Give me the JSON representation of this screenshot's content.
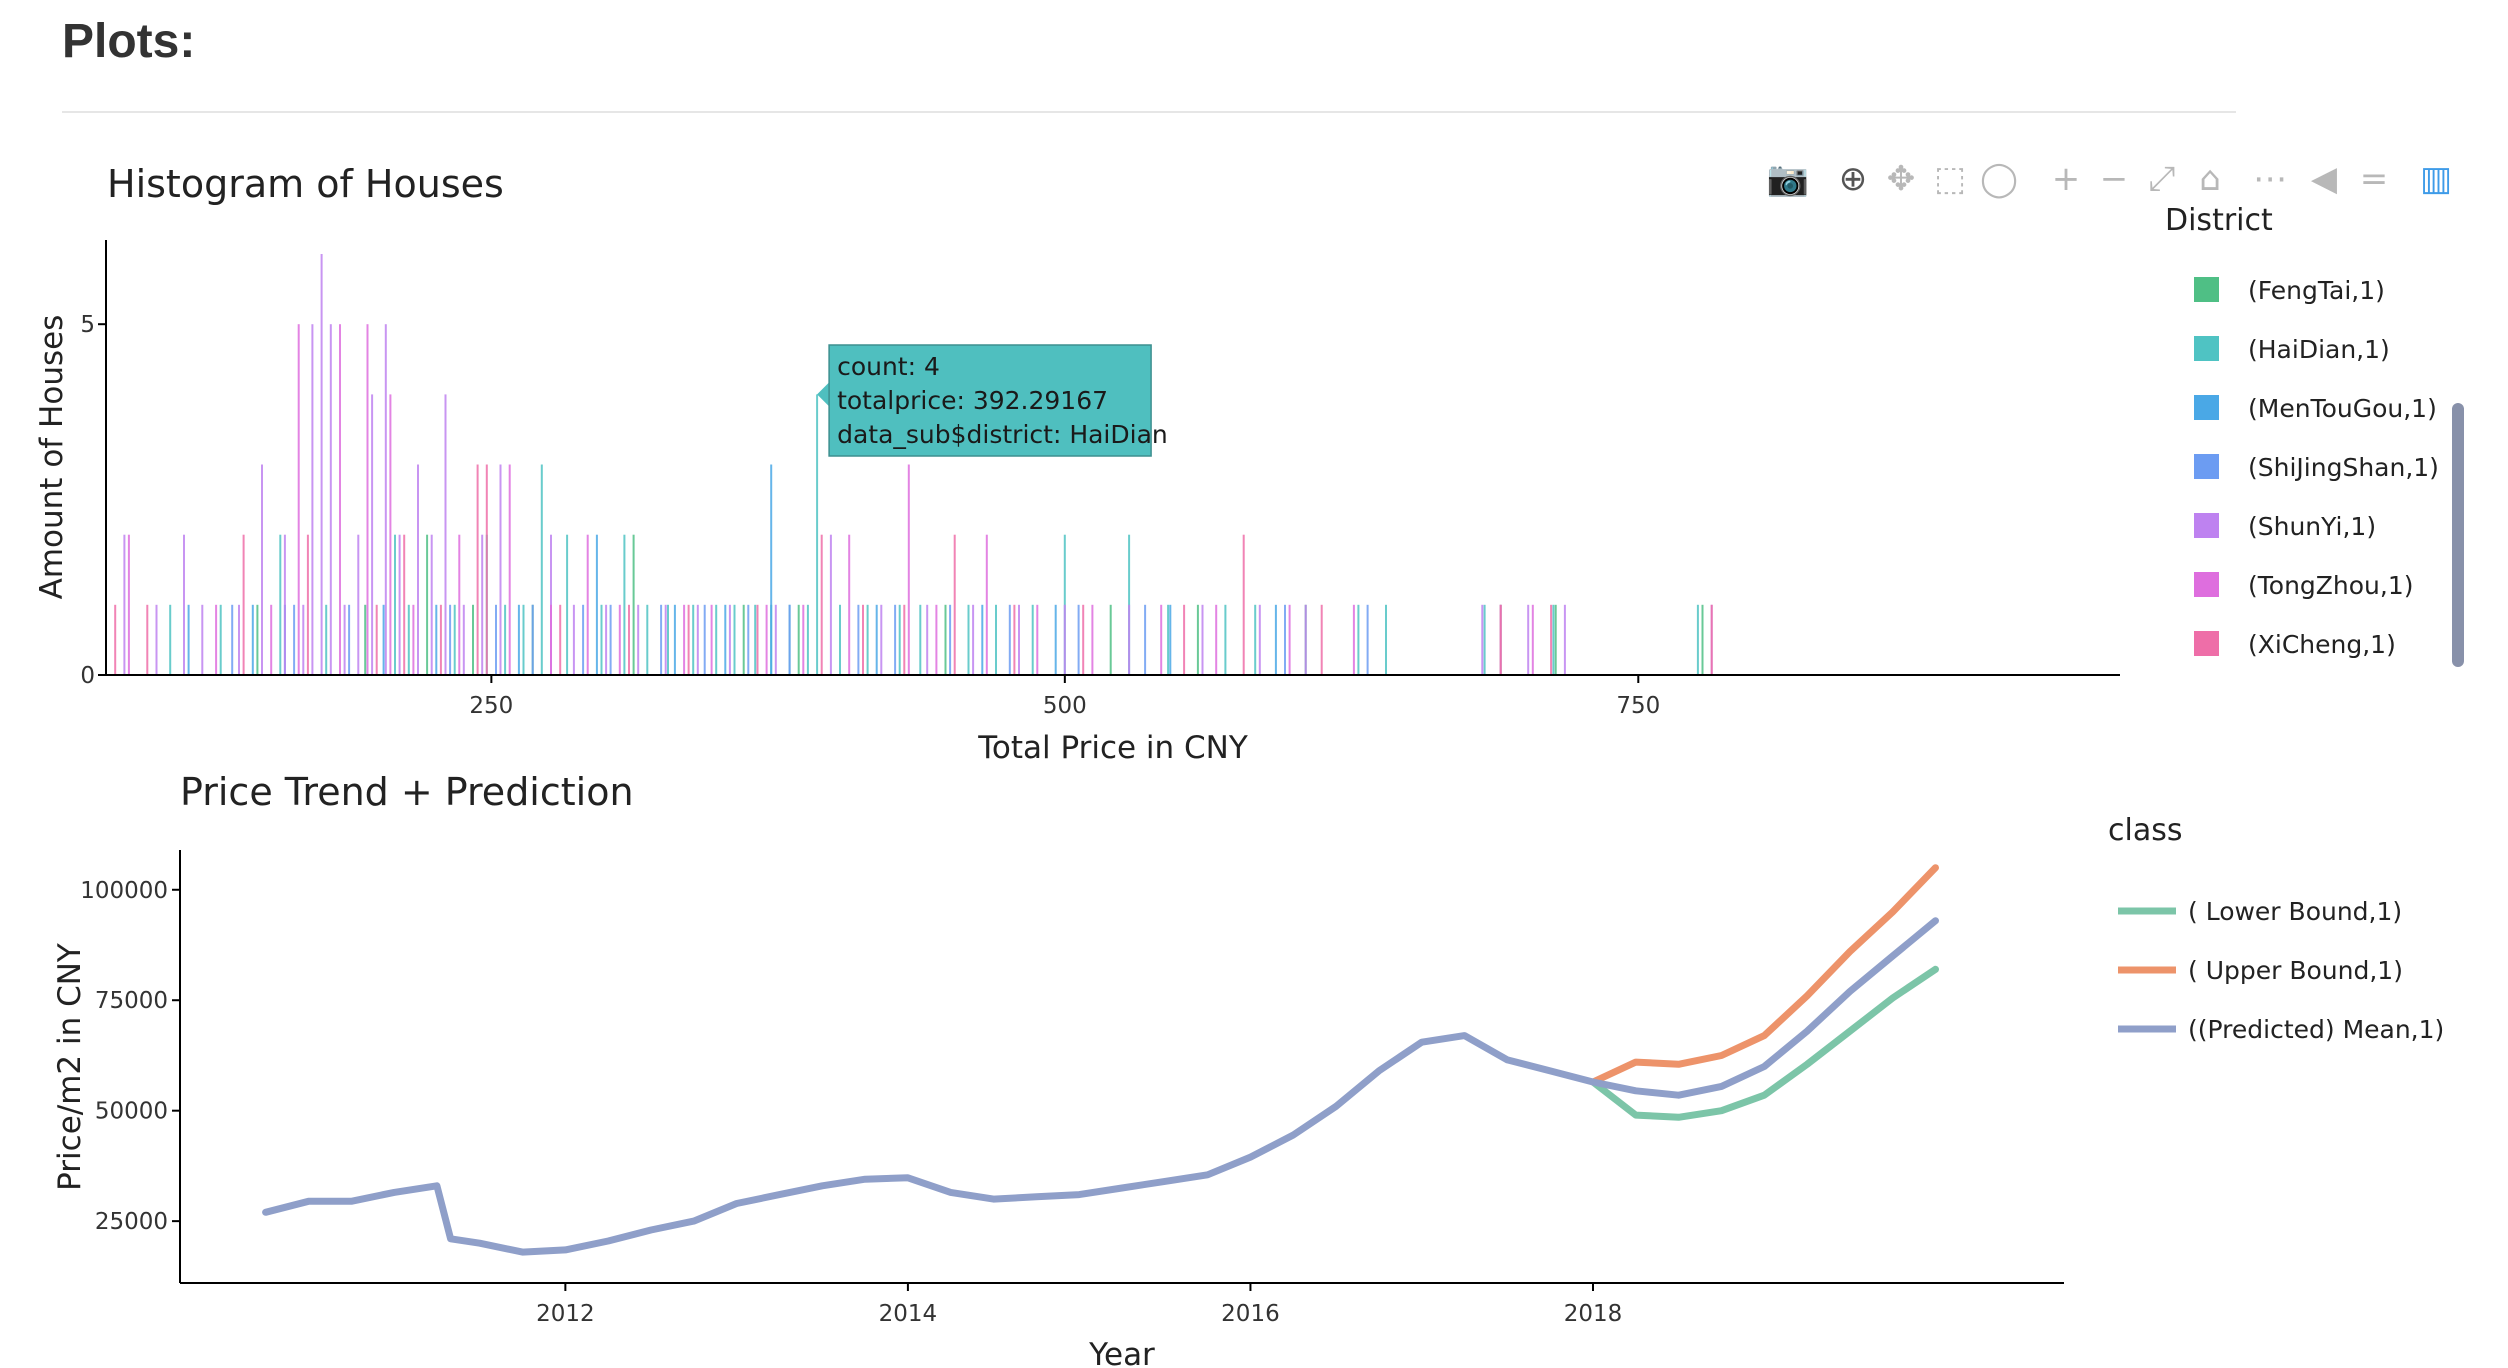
{
  "page": {
    "heading": "Plots:"
  },
  "modebar": {
    "buttons": [
      {
        "name": "camera-icon",
        "glyph": "📷"
      },
      {
        "name": "zoom-icon",
        "glyph": "⊕"
      },
      {
        "name": "pan-icon",
        "glyph": "✥"
      },
      {
        "name": "box-select-icon",
        "glyph": "⬚"
      },
      {
        "name": "lasso-select-icon",
        "glyph": "◯"
      },
      {
        "name": "zoom-in-icon",
        "glyph": "+"
      },
      {
        "name": "zoom-out-icon",
        "glyph": "−"
      },
      {
        "name": "autoscale-icon",
        "glyph": "⤢"
      },
      {
        "name": "reset-axes-icon",
        "glyph": "⌂"
      },
      {
        "name": "spike-lines-icon",
        "glyph": "⋯"
      },
      {
        "name": "hover-closest-icon",
        "glyph": "◀"
      },
      {
        "name": "hover-compare-icon",
        "glyph": "="
      },
      {
        "name": "plotly-logo-icon",
        "glyph": "▥"
      }
    ]
  },
  "colors": {
    "FengTai": "#4fbf85",
    "HaiDian": "#4fc3c3",
    "MenTouGou": "#4aa8e6",
    "ShiJingShan": "#6c9cf2",
    "ShunYi": "#be82f0",
    "TongZhou": "#de6ede",
    "XiCheng": "#ee6ea8",
    "lower": "#7cc5a8",
    "upper": "#ed936a",
    "mean": "#8f9fc9",
    "tooltip_bg": "#4fbfbf",
    "scrollbar": "#8891aa"
  },
  "chart_data": [
    {
      "type": "bar",
      "title": "Histogram of Houses",
      "xlabel": "Total Price in CNY",
      "ylabel": "Amount of Houses",
      "xlim": [
        82,
        960
      ],
      "ylim": [
        0,
        6.2
      ],
      "x_ticks": [
        250,
        500,
        750
      ],
      "y_ticks": [
        0,
        5
      ],
      "legend_title": "District",
      "legend_position": "right",
      "legend": [
        "(FengTai,1)",
        "(HaiDian,1)",
        "(MenTouGou,1)",
        "(ShiJingShan,1)",
        "(ShunYi,1)",
        "(TongZhou,1)",
        "(XiCheng,1)"
      ],
      "series": [
        {
          "name": "(FengTai,1)",
          "color_key": "FengTai",
          "x": [
            148,
            195,
            222,
            242,
            268,
            312,
            360,
            384,
            448,
            520,
            558,
            605,
            690,
            714,
            778
          ],
          "y": [
            1,
            1,
            2,
            1,
            1,
            2,
            1,
            1,
            1,
            1,
            1,
            1,
            1,
            1,
            1
          ]
        },
        {
          "name": "(HaiDian,1)",
          "color_key": "HaiDian",
          "x": [
            110,
            132,
            158,
            178,
            208,
            214,
            234,
            248,
            256,
            264,
            272,
            283,
            298,
            308,
            318,
            327,
            338,
            348,
            356,
            365,
            372,
            380,
            388,
            392,
            402,
            414,
            428,
            437,
            458,
            470,
            486,
            500,
            528,
            545,
            570,
            583,
            628,
            640,
            683,
            713,
            776
          ],
          "y": [
            1,
            1,
            2,
            1,
            2,
            1,
            1,
            2,
            1,
            1,
            3,
            2,
            1,
            2,
            1,
            1,
            1,
            1,
            1,
            1,
            1,
            1,
            1,
            4,
            1,
            1,
            1,
            1,
            1,
            1,
            1,
            2,
            2,
            1,
            1,
            1,
            1,
            1,
            1,
            1,
            1
          ]
        },
        {
          "name": "(MenTouGou,1)",
          "color_key": "MenTouGou",
          "x": [
            118,
            146,
            160,
            203,
            226,
            262,
            296,
            330,
            352,
            372,
            418,
            464,
            496,
            546,
            592
          ],
          "y": [
            1,
            1,
            1,
            1,
            1,
            1,
            2,
            1,
            1,
            3,
            1,
            1,
            1,
            1,
            1
          ]
        },
        {
          "name": "(ShiJingShan,1)",
          "color_key": "ShiJingShan",
          "x": [
            137,
            164,
            188,
            232,
            252,
            268,
            290,
            302,
            324,
            343,
            362,
            380,
            410,
            426,
            450,
            476,
            506,
            535,
            596,
            632
          ],
          "y": [
            1,
            1,
            1,
            1,
            1,
            1,
            1,
            1,
            1,
            1,
            1,
            1,
            1,
            1,
            1,
            1,
            1,
            1,
            1,
            1
          ]
        },
        {
          "name": "(ShunYi,1)",
          "color_key": "ShunYi",
          "x": [
            90,
            104,
            116,
            124,
            140,
            150,
            160,
            168,
            172,
            176,
            180,
            186,
            192,
            198,
            204,
            210,
            218,
            224,
            230,
            238,
            246,
            254,
            276,
            286,
            300,
            314,
            326,
            340,
            354,
            374,
            398,
            420,
            440,
            460,
            480,
            500,
            528,
            560,
            585,
            605,
            682,
            702,
            718,
            782
          ],
          "y": [
            2,
            1,
            2,
            1,
            1,
            3,
            2,
            1,
            5,
            6,
            5,
            1,
            2,
            4,
            5,
            2,
            3,
            2,
            4,
            1,
            2,
            3,
            2,
            1,
            1,
            1,
            1,
            1,
            1,
            1,
            2,
            1,
            1,
            1,
            1,
            1,
            1,
            1,
            1,
            1,
            1,
            1,
            1,
            1
          ]
        },
        {
          "name": "(TongZhou,1)",
          "color_key": "TongZhou",
          "x": [
            92,
            130,
            154,
            166,
            184,
            196,
            206,
            216,
            236,
            258,
            276,
            292,
            306,
            334,
            346,
            370,
            386,
            406,
            432,
            444,
            466,
            488,
            512,
            542,
            566,
            598,
            626,
            690,
            704
          ],
          "y": [
            2,
            1,
            1,
            5,
            5,
            5,
            4,
            1,
            2,
            3,
            1,
            2,
            1,
            1,
            1,
            1,
            1,
            2,
            3,
            1,
            2,
            1,
            1,
            1,
            1,
            1,
            1,
            1,
            1
          ]
        },
        {
          "name": "(XiCheng,1)",
          "color_key": "XiCheng",
          "x": [
            86,
            100,
            142,
            170,
            200,
            212,
            228,
            244,
            248,
            280,
            310,
            336,
            366,
            394,
            412,
            430,
            452,
            478,
            508,
            552,
            578,
            612,
            690,
            712,
            782
          ],
          "y": [
            1,
            1,
            2,
            2,
            1,
            2,
            1,
            3,
            3,
            1,
            1,
            1,
            1,
            2,
            1,
            1,
            2,
            1,
            1,
            1,
            2,
            1,
            1,
            1,
            1
          ]
        }
      ],
      "tooltip": {
        "count": "count:  4",
        "totalprice": "totalprice: 392.29167",
        "district": "data_sub$district: HaiDian",
        "anchor_x": 392,
        "anchor_y": 4
      }
    },
    {
      "type": "line",
      "title": "Price Trend + Prediction",
      "xlabel": "Year",
      "ylabel": "Price/m2 in CNY",
      "xlim": [
        2009.75,
        2020.75
      ],
      "ylim": [
        11000,
        109000
      ],
      "x_ticks": [
        2012,
        2014,
        2016,
        2018
      ],
      "y_ticks": [
        25000,
        50000,
        75000,
        100000
      ],
      "legend_title": "class",
      "legend_position": "right",
      "legend": [
        "( Lower Bound,1)",
        "( Upper Bound,1)",
        "((Predicted) Mean,1)"
      ],
      "series": [
        {
          "name": "((Predicted) Mean,1)",
          "color_key": "mean",
          "x": [
            2010.25,
            2010.5,
            2010.75,
            2011.0,
            2011.25,
            2011.33,
            2011.5,
            2011.75,
            2012.0,
            2012.25,
            2012.5,
            2012.75,
            2013.0,
            2013.25,
            2013.5,
            2013.75,
            2014.0,
            2014.25,
            2014.5,
            2014.75,
            2015.0,
            2015.25,
            2015.5,
            2015.75,
            2016.0,
            2016.25,
            2016.5,
            2016.75,
            2017.0,
            2017.25,
            2017.5,
            2017.75,
            2018.0,
            2018.25,
            2018.5,
            2018.75,
            2019.0,
            2019.25,
            2019.5,
            2019.75,
            2020.0
          ],
          "y": [
            27000,
            29500,
            29500,
            31500,
            33000,
            21000,
            20000,
            18000,
            18500,
            20500,
            23000,
            25000,
            29000,
            31000,
            33000,
            34500,
            34800,
            31500,
            30000,
            30500,
            31000,
            32500,
            34000,
            35500,
            39500,
            44500,
            51000,
            59000,
            65500,
            67000,
            61500,
            59000,
            56500,
            54500,
            53500,
            55500,
            60000,
            68000,
            77000,
            85000,
            93000
          ]
        },
        {
          "name": "( Lower Bound,1)",
          "color_key": "lower",
          "x": [
            2018.0,
            2018.25,
            2018.5,
            2018.75,
            2019.0,
            2019.25,
            2019.5,
            2019.75,
            2020.0
          ],
          "y": [
            56500,
            49000,
            48500,
            50000,
            53500,
            60500,
            68000,
            75500,
            82000
          ]
        },
        {
          "name": "( Upper Bound,1)",
          "color_key": "upper",
          "x": [
            2018.0,
            2018.25,
            2018.5,
            2018.75,
            2019.0,
            2019.25,
            2019.5,
            2019.75,
            2020.0
          ],
          "y": [
            56500,
            61000,
            60500,
            62500,
            67000,
            76000,
            86000,
            95000,
            105000
          ]
        }
      ]
    }
  ]
}
